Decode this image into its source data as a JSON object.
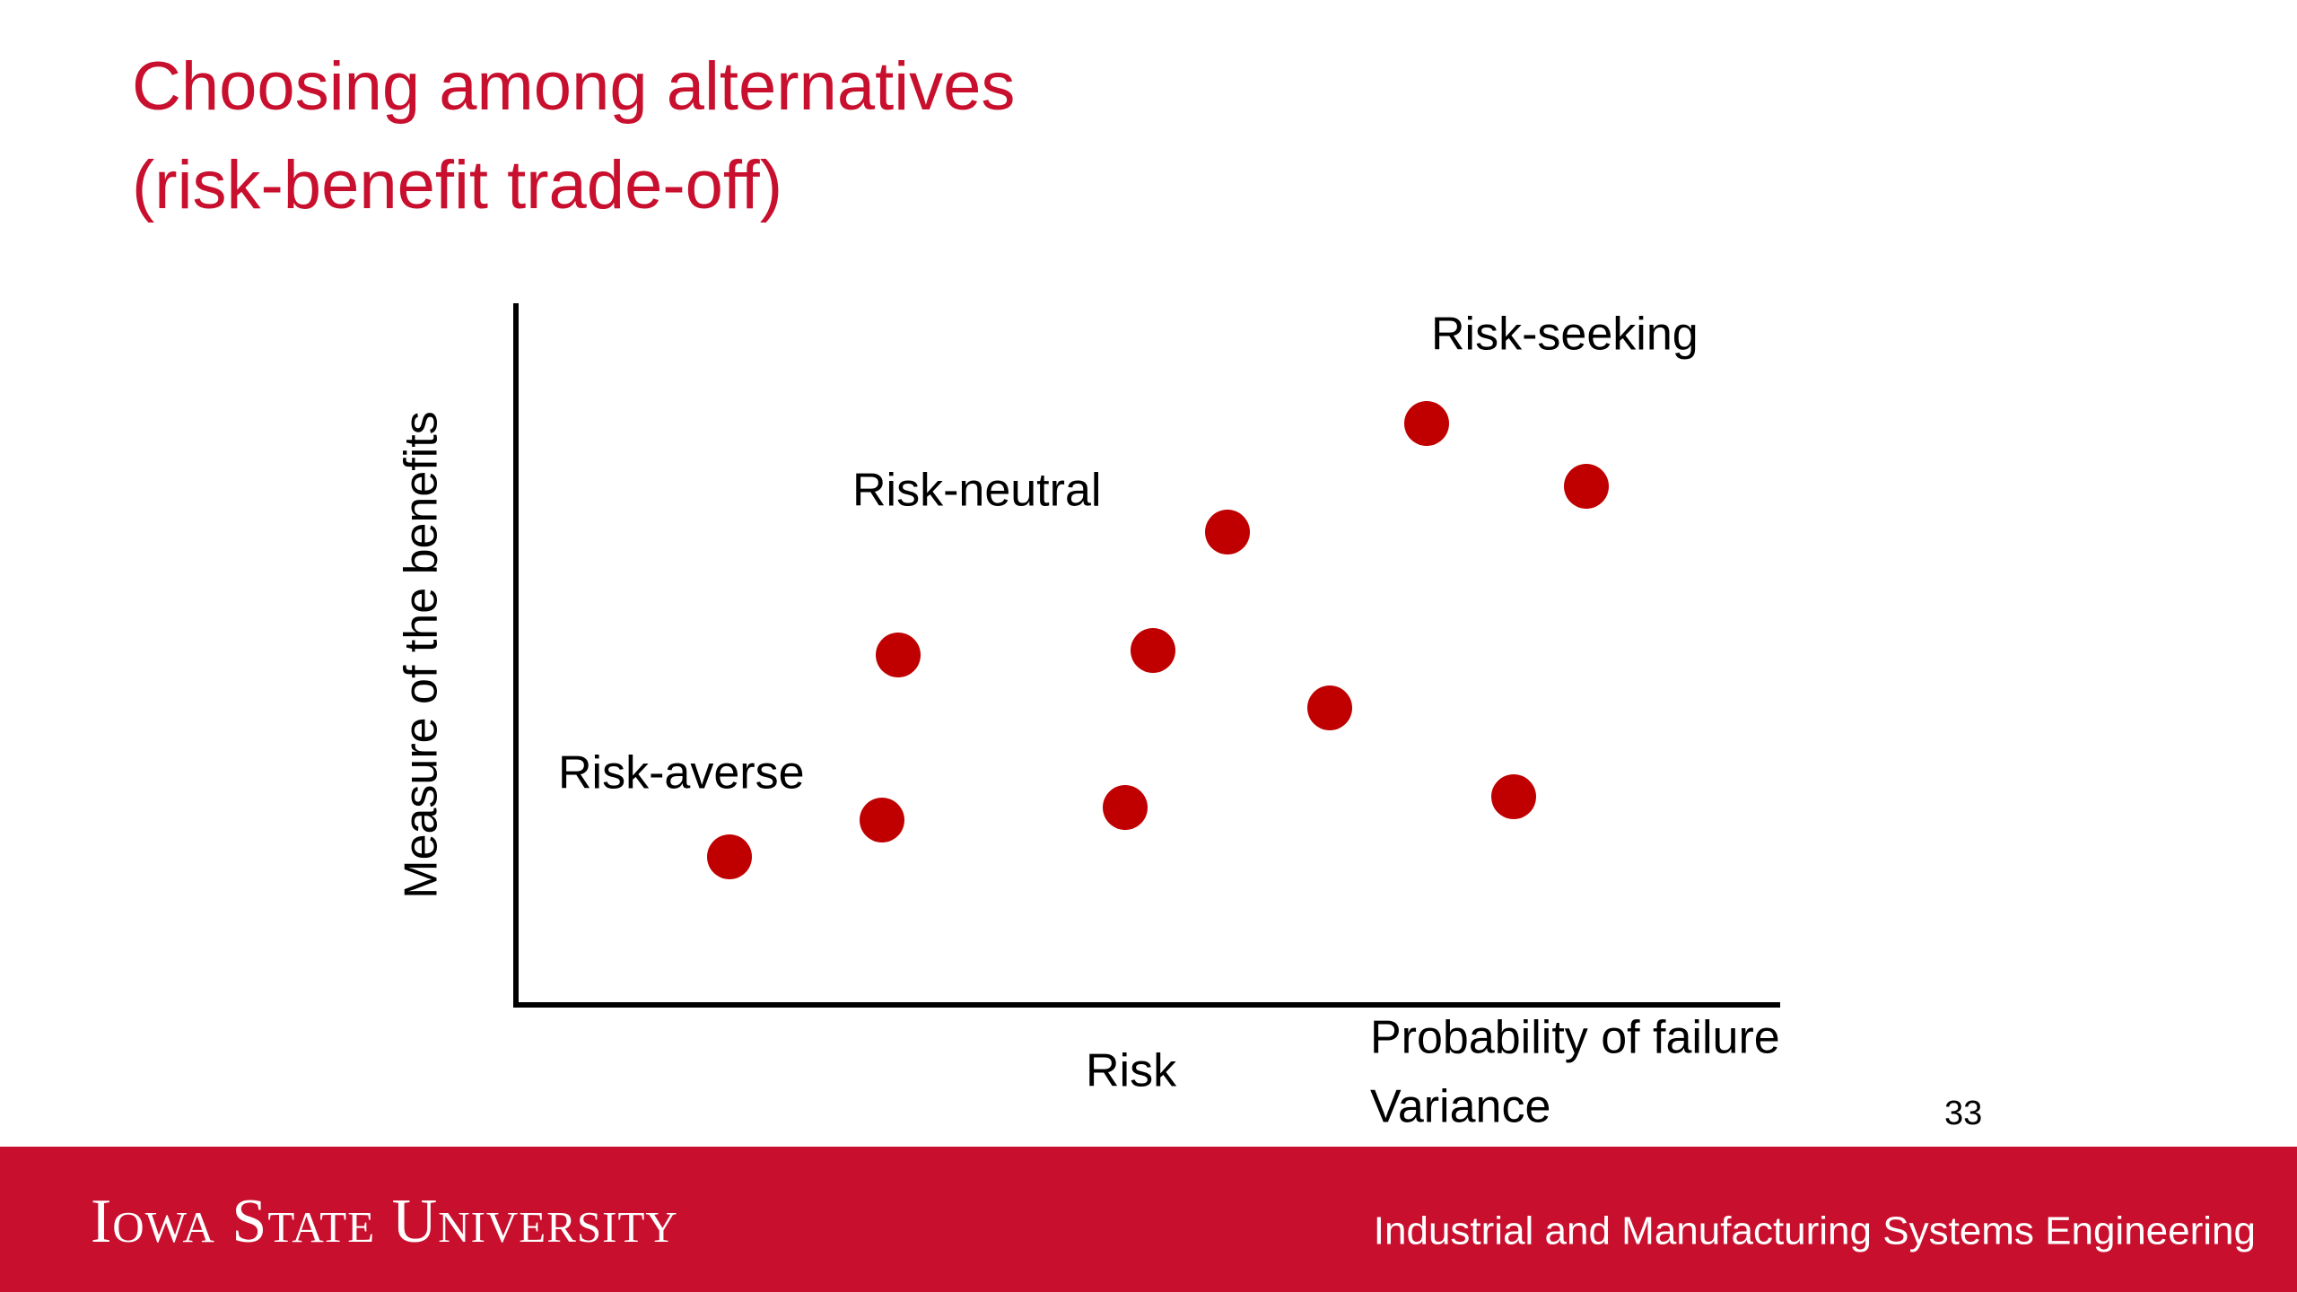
{
  "slide": {
    "title": [
      "Choosing among alternatives",
      "(risk-benefit trade-off)"
    ],
    "y_axis_label": "Measure of the benefits",
    "x_axis_label": "Risk",
    "x_axis_notes": [
      "Probability of failure",
      "Variance"
    ],
    "regions": [
      "Risk-seeking",
      "Risk-neutral",
      "Risk-averse"
    ],
    "page_number": "33"
  },
  "footer": {
    "university": "Iowa State University",
    "department": "Industrial and Manufacturing Systems Engineering"
  }
}
